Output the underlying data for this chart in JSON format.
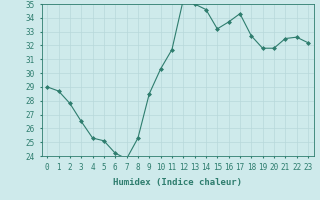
{
  "xlabel": "Humidex (Indice chaleur)",
  "x": [
    0,
    1,
    2,
    3,
    4,
    5,
    6,
    7,
    8,
    9,
    10,
    11,
    12,
    13,
    14,
    15,
    16,
    17,
    18,
    19,
    20,
    21,
    22,
    23
  ],
  "y": [
    29,
    28.7,
    27.8,
    26.5,
    25.3,
    25.1,
    24.2,
    23.8,
    25.3,
    28.5,
    30.3,
    31.7,
    35.3,
    35.0,
    34.6,
    33.2,
    33.7,
    34.3,
    32.7,
    31.8,
    31.8,
    32.5,
    32.6,
    32.2
  ],
  "ylim": [
    24,
    35
  ],
  "yticks": [
    24,
    25,
    26,
    27,
    28,
    29,
    30,
    31,
    32,
    33,
    34,
    35
  ],
  "xticks": [
    0,
    1,
    2,
    3,
    4,
    5,
    6,
    7,
    8,
    9,
    10,
    11,
    12,
    13,
    14,
    15,
    16,
    17,
    18,
    19,
    20,
    21,
    22,
    23
  ],
  "line_color": "#2e7d6e",
  "marker": "D",
  "marker_size": 2,
  "bg_color": "#ceeaeb",
  "grid_color": "#b8d8da",
  "tick_color": "#2e7d6e",
  "label_color": "#2e7d6e",
  "font_family": "monospace",
  "xlabel_fontsize": 6.5,
  "tick_fontsize": 5.5
}
